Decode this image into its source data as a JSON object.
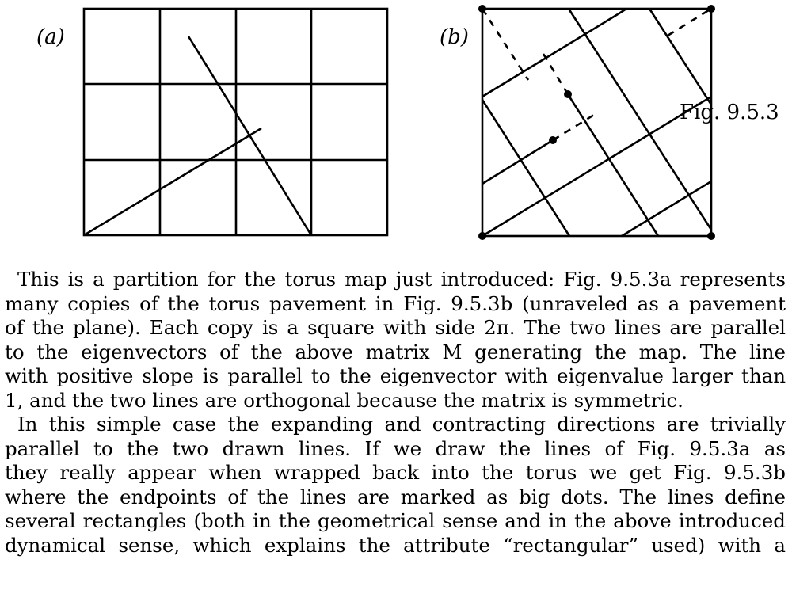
{
  "figure": {
    "panel_a_label": "(a)",
    "panel_b_label": "(b)",
    "caption": "Fig. 9.5.3"
  },
  "text": {
    "paragraph1": [
      "This is a partition for the torus map just introduced: Fig. 9.5.3a represents",
      "many copies of the torus pavement in Fig. 9.5.3b (unraveled as a pavement",
      "of the plane). Each copy is a square with side 2π. The two lines are parallel",
      "to the eigenvectors of the above matrix M generating the map. The line",
      "with positive slope is parallel to the eigenvector with eigenvalue larger than",
      "1, and the two lines are orthogonal because the matrix is symmetric."
    ],
    "paragraph2": [
      "In this simple case the expanding and contracting directions are trivially",
      "parallel to the two drawn lines. If we draw the lines of Fig. 9.5.3a as",
      "they really appear when wrapped back into the torus we get Fig. 9.5.3b",
      "where the endpoints of the lines are marked as big dots. The lines define",
      "several rectangles (both in the geometrical sense and in the above introduced",
      "dynamical sense, which explains the attribute “rectangular” used) with a"
    ]
  }
}
